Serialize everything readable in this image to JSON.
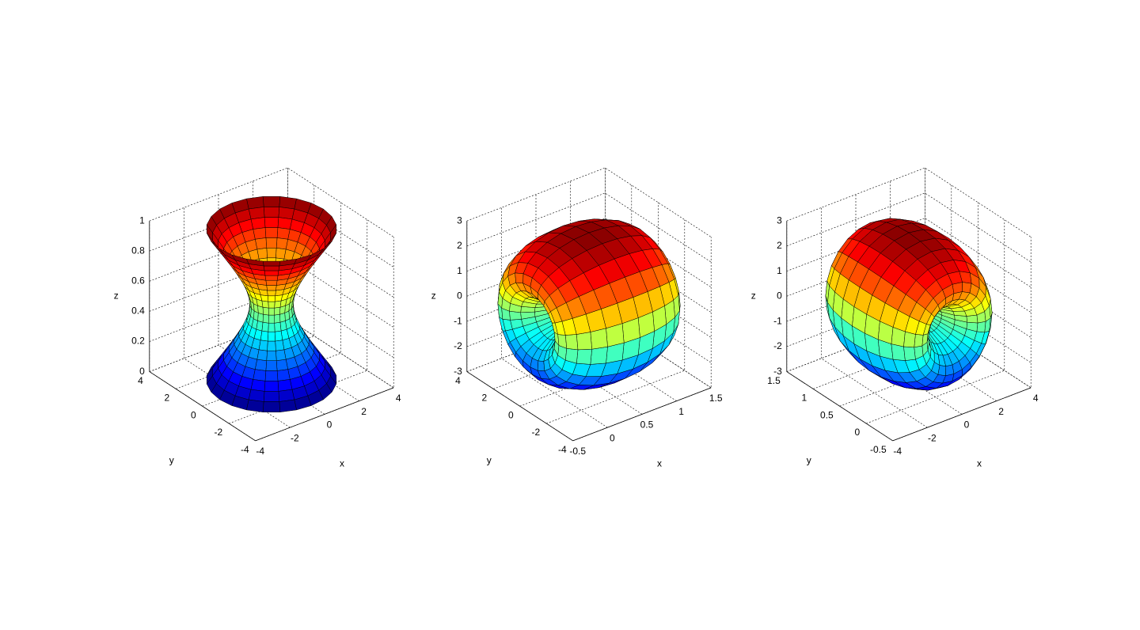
{
  "chart_data": [
    {
      "type": "surface",
      "xlabel": "x",
      "ylabel": "y",
      "zlabel": "z",
      "xlim": [
        -4,
        4
      ],
      "ylim": [
        -4,
        4
      ],
      "zlim": [
        0,
        1
      ],
      "xticks": [
        -4,
        -2,
        0,
        2,
        4
      ],
      "yticks": [
        -4,
        -2,
        0,
        2,
        4
      ],
      "zticks": [
        0,
        0.2,
        0.4,
        0.6,
        0.8,
        1
      ],
      "grid": true,
      "colormap": "jet"
    },
    {
      "type": "surface",
      "xlabel": "x",
      "ylabel": "y",
      "zlabel": "z",
      "xlim": [
        -0.5,
        1.5
      ],
      "ylim": [
        -4,
        4
      ],
      "zlim": [
        -3,
        3
      ],
      "xticks": [
        -0.5,
        0,
        0.5,
        1,
        1.5
      ],
      "yticks": [
        -4,
        -2,
        0,
        2,
        4
      ],
      "zticks": [
        -3,
        -2,
        -1,
        0,
        1,
        2,
        3
      ],
      "grid": true,
      "colormap": "jet"
    },
    {
      "type": "surface",
      "xlabel": "x",
      "ylabel": "y",
      "zlabel": "z",
      "xlim": [
        -4,
        4
      ],
      "ylim": [
        -0.5,
        1.5
      ],
      "zlim": [
        -3,
        3
      ],
      "xticks": [
        -4,
        -2,
        0,
        2,
        4
      ],
      "yticks": [
        -0.5,
        0,
        0.5,
        1,
        1.5
      ],
      "zticks": [
        -3,
        -2,
        -1,
        0,
        1,
        2,
        3
      ],
      "grid": true,
      "colormap": "jet"
    }
  ]
}
